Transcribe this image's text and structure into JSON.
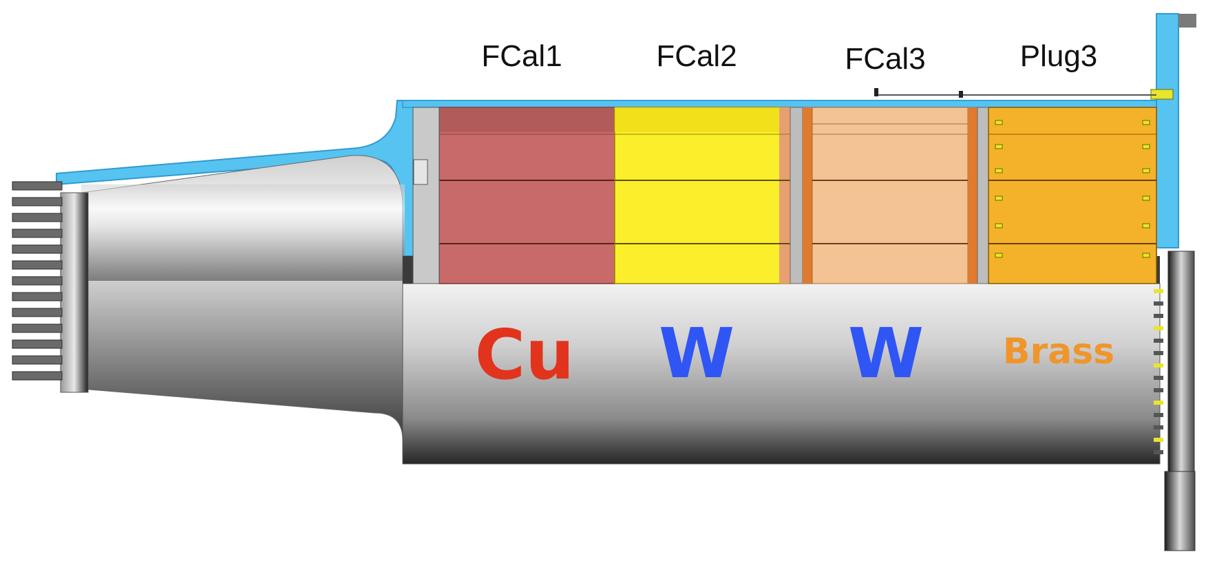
{
  "modules": [
    {
      "label": "FCal1",
      "material": "Cu",
      "material_color": "#e2331d",
      "fill_color": "#c96a6a"
    },
    {
      "label": "FCal2",
      "material": "W",
      "material_color": "#2f55f5",
      "fill_color": "#fbef2c"
    },
    {
      "label": "FCal3",
      "material": "W",
      "material_color": "#2f55f5",
      "fill_color": "#f3c394"
    },
    {
      "label": "Plug3",
      "material": "Brass",
      "material_color": "#f0952a",
      "fill_color": "#f4b22b"
    }
  ],
  "colors": {
    "cryostat": "#56c3f1",
    "cryostat_edge": "#2f9bd0",
    "steel_light": "#e6e6e6",
    "steel_dark": "#2f2f2f",
    "separator": "#e07a2e"
  }
}
